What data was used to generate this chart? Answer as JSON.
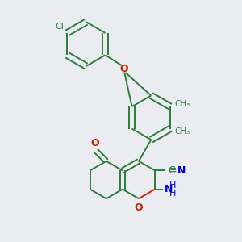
{
  "bg_color": "#ebebf2",
  "bond_color": "#2d7d3a",
  "o_color": "#cc2200",
  "n_color": "#0000cc",
  "lw": 1.4,
  "figsize": [
    3.0,
    3.0
  ],
  "dpi": 100,
  "xlim": [
    -1.6,
    1.6
  ],
  "ylim": [
    -1.7,
    1.9
  ]
}
